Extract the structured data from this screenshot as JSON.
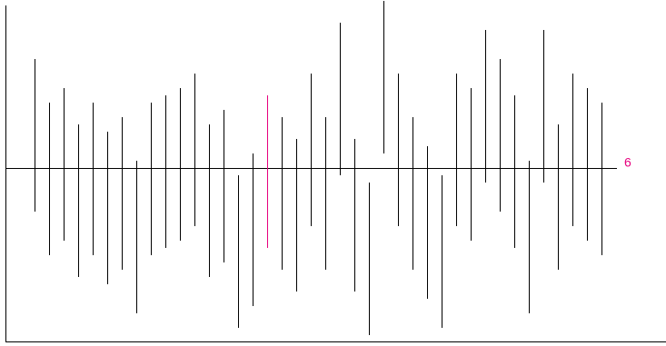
{
  "chart_data": {
    "type": "range",
    "title": "",
    "xlabel": "",
    "ylabel": "",
    "grid": false,
    "legend": "none",
    "reference_line": {
      "value": 0,
      "label": "6",
      "label_color": "#e6007e"
    },
    "colors": {
      "default": "#000000",
      "highlight": "#e6007e"
    },
    "highlight_index": 16,
    "ylim": [
      -12,
      11.5
    ],
    "series": [
      {
        "values": [
          [
            -3,
            7.5
          ],
          [
            -6,
            4.5
          ],
          [
            -5,
            5.5
          ],
          [
            -7.5,
            3
          ],
          [
            -6,
            4.5
          ],
          [
            -8,
            2.5
          ],
          [
            -7,
            3.5
          ],
          [
            -10,
            0.5
          ],
          [
            -6,
            4.5
          ],
          [
            -5.5,
            5
          ],
          [
            -5,
            5.5
          ],
          [
            -4,
            6.5
          ],
          [
            -7.5,
            3
          ],
          [
            -6.5,
            4
          ],
          [
            -11,
            -0.5
          ],
          [
            -9.5,
            1
          ],
          [
            -5.5,
            5
          ],
          [
            -7,
            3.5
          ],
          [
            -8.5,
            2
          ],
          [
            -4,
            6.5
          ],
          [
            -7,
            3.5
          ],
          [
            -0.5,
            10
          ],
          [
            -8.5,
            2
          ],
          [
            -11.5,
            -1
          ],
          [
            1,
            11.5
          ],
          [
            -4,
            6.5
          ],
          [
            -7,
            3.5
          ],
          [
            -9,
            1.5
          ],
          [
            -11,
            -0.5
          ],
          [
            -4,
            6.5
          ],
          [
            -5,
            5.5
          ],
          [
            -1,
            9.5
          ],
          [
            -3,
            7.5
          ],
          [
            -5.5,
            5
          ],
          [
            -10,
            0.5
          ],
          [
            -1,
            9.5
          ],
          [
            -7,
            3
          ],
          [
            -4,
            6.5
          ],
          [
            -5,
            5.5
          ],
          [
            -6,
            4.5
          ]
        ]
      }
    ]
  }
}
